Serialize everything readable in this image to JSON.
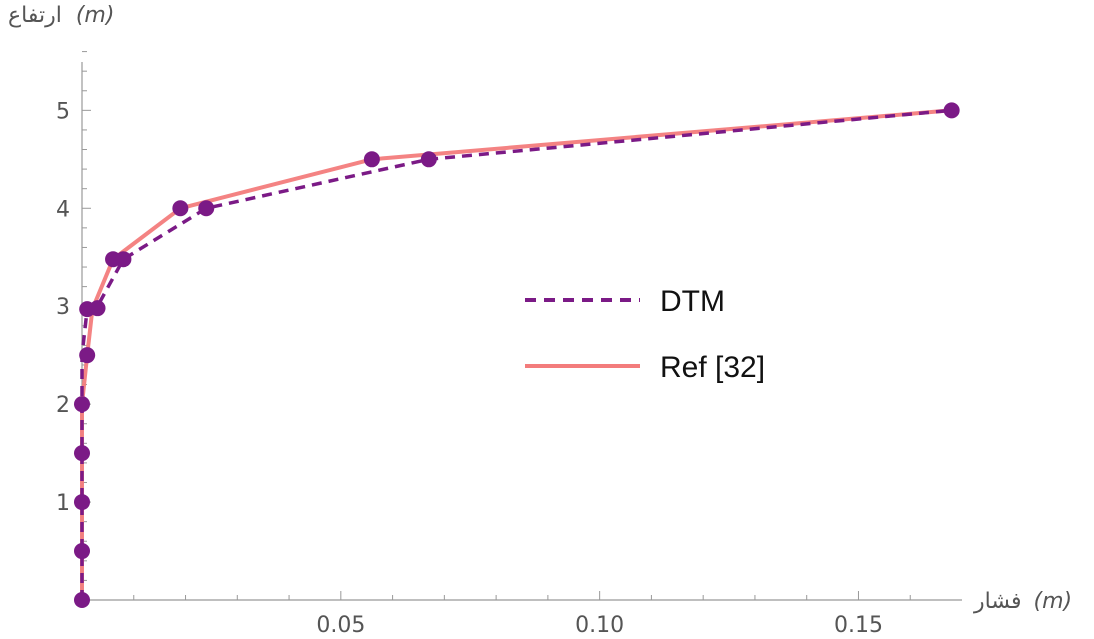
{
  "chart_data": {
    "type": "line",
    "xlabel": "فشار (m)",
    "ylabel": "ارتفاع (m)",
    "xlabel_unit": "(m)",
    "xlabel_word": "فشار",
    "ylabel_unit": "(m)",
    "ylabel_word": "ارتفاع",
    "xlim": [
      0,
      0.17
    ],
    "ylim": [
      0,
      5.8
    ],
    "x_ticks": [
      0.05,
      0.1,
      0.15
    ],
    "x_tick_labels": [
      "0.05",
      "0.10",
      "0.15"
    ],
    "y_ticks": [
      1,
      2,
      3,
      4,
      5
    ],
    "y_tick_labels": [
      "1",
      "2",
      "3",
      "4",
      "5"
    ],
    "grid": false,
    "legend_position": "center-right",
    "series": [
      {
        "name": "DTM",
        "style": "dashed",
        "color": "#7b1a86",
        "x": [
          0,
          0,
          0,
          0,
          0,
          0,
          0.001,
          0.003,
          0.008,
          0.024,
          0.067,
          0.168
        ],
        "y": [
          0,
          0.5,
          1.0,
          1.5,
          2.0,
          2.5,
          2.97,
          3.0,
          3.48,
          4.0,
          4.5,
          5.0
        ]
      },
      {
        "name": "Ref [32]",
        "style": "solid",
        "color": "#f37c7c",
        "x": [
          0,
          0,
          0,
          0,
          0,
          0.001,
          0.002,
          0.006,
          0.019,
          0.056,
          0.168
        ],
        "y": [
          0,
          0.5,
          1.0,
          1.5,
          2.0,
          2.5,
          2.97,
          3.48,
          4.0,
          4.5,
          5.0
        ]
      }
    ],
    "markers": {
      "color": "#7b1a86",
      "x": [
        0,
        0,
        0,
        0,
        0,
        0.001,
        0.001,
        0.003,
        0.006,
        0.008,
        0.019,
        0.024,
        0.056,
        0.067,
        0.168
      ],
      "y": [
        0,
        0.5,
        1.0,
        1.5,
        2.0,
        2.5,
        2.97,
        2.98,
        3.48,
        3.48,
        4.0,
        4.0,
        4.5,
        4.5,
        5.0
      ]
    }
  }
}
